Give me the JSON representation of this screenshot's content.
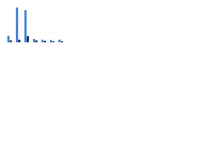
{
  "chart_data": {
    "type": "grouped-bar",
    "categories": [
      null,
      null,
      null,
      null,
      null,
      null,
      null
    ],
    "series": [
      {
        "color": "#3a7bd5",
        "values": [
          17,
          91,
          84,
          9,
          7,
          6,
          7
        ]
      },
      {
        "color": "#0d2a4d",
        "values": [
          5,
          7,
          16,
          5,
          4,
          3,
          3
        ]
      }
    ],
    "ylim": [
      0,
      100
    ],
    "yticks": [
      0,
      25,
      50,
      75,
      100
    ],
    "grid": true
  }
}
